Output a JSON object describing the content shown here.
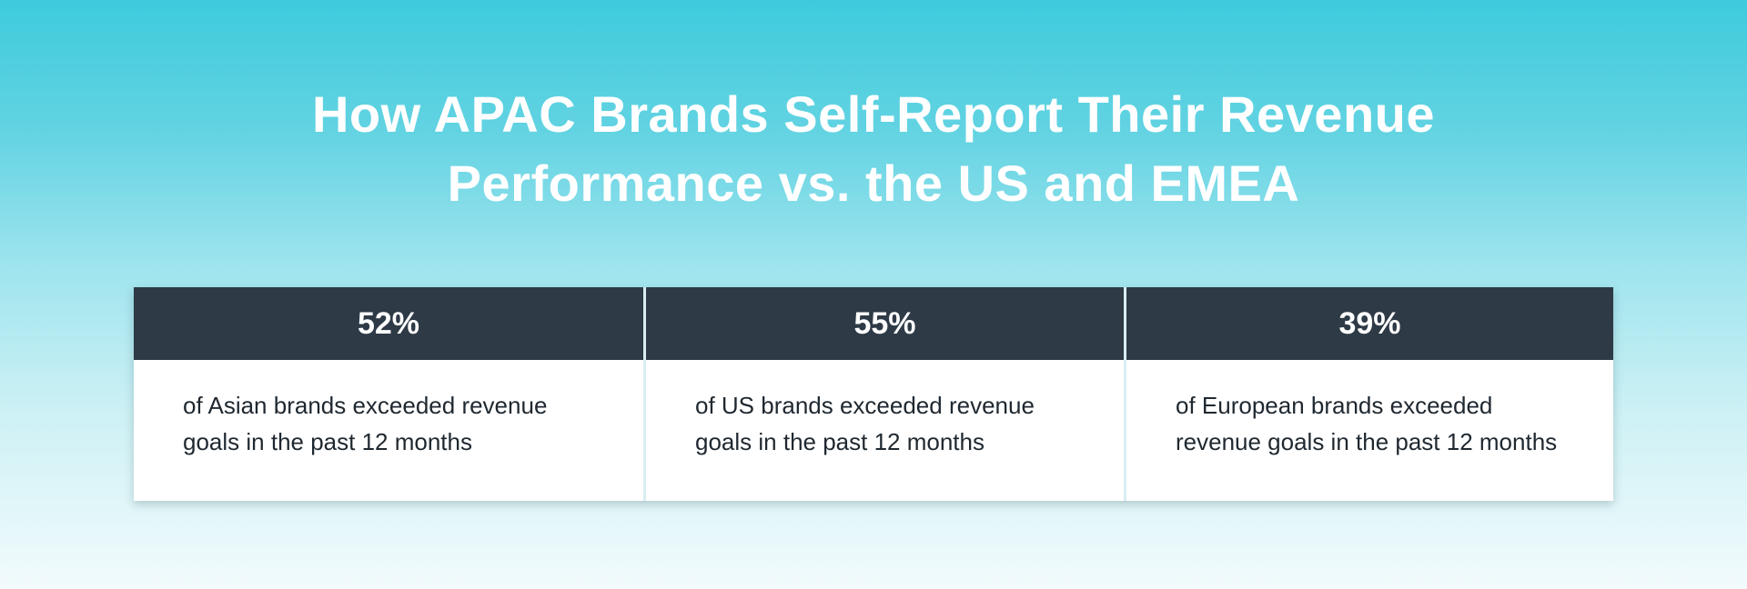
{
  "title": {
    "line1": "How APAC Brands Self-Report Their Revenue",
    "line2": "Performance vs. the US and EMEA"
  },
  "chart_data": {
    "type": "table",
    "title": "How APAC Brands Self-Report Their Revenue Performance vs. the US and EMEA",
    "categories": [
      "Asian brands",
      "US brands",
      "European brands"
    ],
    "values": [
      52,
      55,
      39
    ],
    "unit": "%",
    "cards": [
      {
        "stat": "52%",
        "line1": "of Asian brands exceeded revenue",
        "line2": "goals in the past 12 months"
      },
      {
        "stat": "55%",
        "line1": "of US brands exceeded revenue",
        "line2": "goals in the past 12 months"
      },
      {
        "stat": "39%",
        "line1": "of European brands exceeded",
        "line2": "revenue goals in the past 12 months"
      }
    ]
  },
  "colors": {
    "header_bg": "#2e3a46",
    "text": "#1f2830",
    "accent": "#3ecbdd"
  }
}
